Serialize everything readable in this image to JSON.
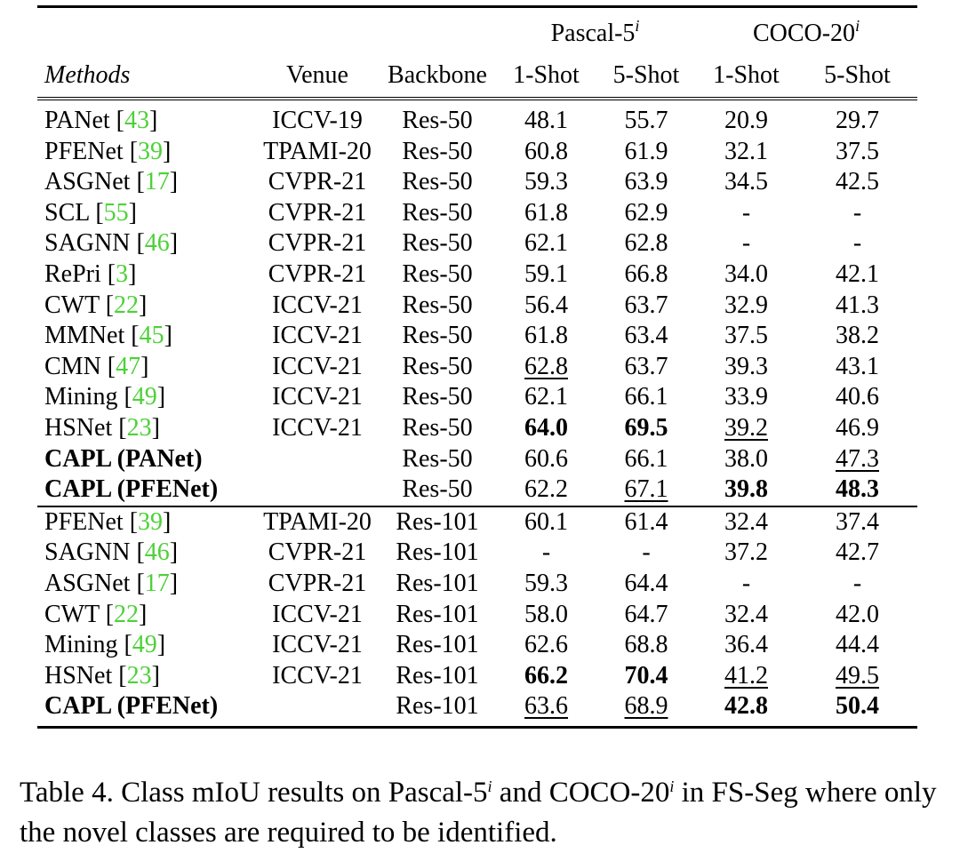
{
  "table": {
    "header": {
      "group_pascal": "Pascal-5",
      "group_pascal_sup": "i",
      "group_coco": "COCO-20",
      "group_coco_sup": "i",
      "methods": "Methods",
      "venue": "Venue",
      "backbone": "Backbone",
      "shot1": "1-Shot",
      "shot5": "5-Shot"
    },
    "rows": [
      {
        "method": "PANet",
        "cite": "43",
        "venue": "ICCV-19",
        "backbone": "Res-50",
        "p1": "48.1",
        "p5": "55.7",
        "c1": "20.9",
        "c5": "29.7"
      },
      {
        "method": "PFENet",
        "cite": "39",
        "venue": "TPAMI-20",
        "backbone": "Res-50",
        "p1": "60.8",
        "p5": "61.9",
        "c1": "32.1",
        "c5": "37.5"
      },
      {
        "method": "ASGNet",
        "cite": "17",
        "venue": "CVPR-21",
        "backbone": "Res-50",
        "p1": "59.3",
        "p5": "63.9",
        "c1": "34.5",
        "c5": "42.5"
      },
      {
        "method": "SCL",
        "cite": "55",
        "venue": "CVPR-21",
        "backbone": "Res-50",
        "p1": "61.8",
        "p5": "62.9",
        "c1": "-",
        "c5": "-"
      },
      {
        "method": "SAGNN",
        "cite": "46",
        "venue": "CVPR-21",
        "backbone": "Res-50",
        "p1": "62.1",
        "p5": "62.8",
        "c1": "-",
        "c5": "-"
      },
      {
        "method": "RePri",
        "cite": "3",
        "venue": "CVPR-21",
        "backbone": "Res-50",
        "p1": "59.1",
        "p5": "66.8",
        "c1": "34.0",
        "c5": "42.1"
      },
      {
        "method": "CWT",
        "cite": "22",
        "venue": "ICCV-21",
        "backbone": "Res-50",
        "p1": "56.4",
        "p5": "63.7",
        "c1": "32.9",
        "c5": "41.3"
      },
      {
        "method": "MMNet",
        "cite": "45",
        "venue": "ICCV-21",
        "backbone": "Res-50",
        "p1": "61.8",
        "p5": "63.4",
        "c1": "37.5",
        "c5": "38.2"
      },
      {
        "method": "CMN",
        "cite": "47",
        "venue": "ICCV-21",
        "backbone": "Res-50",
        "p1": "62.8",
        "p5": "63.7",
        "c1": "39.3",
        "c5": "43.1"
      },
      {
        "method": "Mining",
        "cite": "49",
        "venue": "ICCV-21",
        "backbone": "Res-50",
        "p1": "62.1",
        "p5": "66.1",
        "c1": "33.9",
        "c5": "40.6"
      },
      {
        "method": "HSNet",
        "cite": "23",
        "venue": "ICCV-21",
        "backbone": "Res-50",
        "p1": "64.0",
        "p5": "69.5",
        "c1": "39.2",
        "c5": "46.9"
      },
      {
        "method": "CAPL (PANet)",
        "cite": "",
        "venue": "",
        "backbone": "Res-50",
        "p1": "60.6",
        "p5": "66.1",
        "c1": "38.0",
        "c5": "47.3"
      },
      {
        "method": "CAPL (PFENet)",
        "cite": "",
        "venue": "",
        "backbone": "Res-50",
        "p1": "62.2",
        "p5": "67.1",
        "c1": "39.8",
        "c5": "48.3"
      },
      {
        "method": "PFENet",
        "cite": "39",
        "venue": "TPAMI-20",
        "backbone": "Res-101",
        "p1": "60.1",
        "p5": "61.4",
        "c1": "32.4",
        "c5": "37.4"
      },
      {
        "method": "SAGNN",
        "cite": "46",
        "venue": "CVPR-21",
        "backbone": "Res-101",
        "p1": "-",
        "p5": "-",
        "c1": "37.2",
        "c5": "42.7"
      },
      {
        "method": "ASGNet",
        "cite": "17",
        "venue": "CVPR-21",
        "backbone": "Res-101",
        "p1": "59.3",
        "p5": "64.4",
        "c1": "-",
        "c5": "-"
      },
      {
        "method": "CWT",
        "cite": "22",
        "venue": "ICCV-21",
        "backbone": "Res-101",
        "p1": "58.0",
        "p5": "64.7",
        "c1": "32.4",
        "c5": "42.0"
      },
      {
        "method": "Mining",
        "cite": "49",
        "venue": "ICCV-21",
        "backbone": "Res-101",
        "p1": "62.6",
        "p5": "68.8",
        "c1": "36.4",
        "c5": "44.4"
      },
      {
        "method": "HSNet",
        "cite": "23",
        "venue": "ICCV-21",
        "backbone": "Res-101",
        "p1": "66.2",
        "p5": "70.4",
        "c1": "41.2",
        "c5": "49.5"
      },
      {
        "method": "CAPL (PFENet)",
        "cite": "",
        "venue": "",
        "backbone": "Res-101",
        "p1": "63.6",
        "p5": "68.9",
        "c1": "42.8",
        "c5": "50.4"
      }
    ]
  },
  "caption": {
    "part1": "Table 4.  Class mIoU results on Pascal-5",
    "sup1": "i",
    "part2": " and COCO-20",
    "sup2": "i",
    "part3": " in FS-Seg where only the novel classes are required to be identified."
  }
}
